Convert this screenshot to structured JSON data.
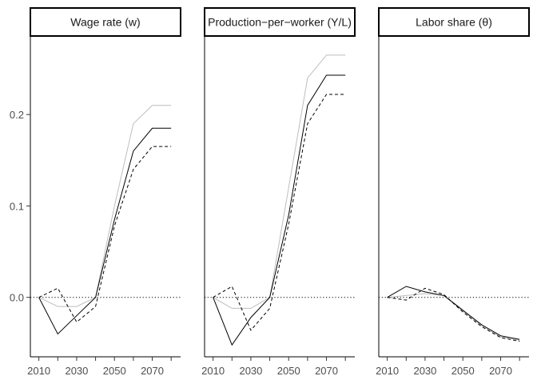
{
  "chart_data": [
    {
      "type": "line",
      "title": "Wage rate (w)",
      "x": [
        2010,
        2020,
        2030,
        2040,
        2050,
        2060,
        2070,
        2080
      ],
      "ylim": [
        -0.065,
        0.285
      ],
      "xlim": [
        2005.5,
        2085
      ],
      "yticks": [
        "0.0",
        "0.1",
        "0.2"
      ],
      "ytick_values": [
        0,
        0.1,
        0.2
      ],
      "xticks": [
        "2010",
        "2030",
        "2050",
        "2070"
      ],
      "xtick_values": [
        2010,
        2030,
        2050,
        2070
      ],
      "reference_line": 0,
      "series": [
        {
          "style": "solid",
          "color": "#000000",
          "values": [
            0,
            -0.04,
            -0.02,
            0,
            0.085,
            0.16,
            0.185,
            0.185
          ]
        },
        {
          "style": "dashed",
          "color": "#000000",
          "values": [
            0,
            0.01,
            -0.027,
            -0.01,
            0.078,
            0.14,
            0.165,
            0.165
          ]
        },
        {
          "style": "solid",
          "color": "#bdbdbd",
          "values": [
            0,
            -0.01,
            -0.01,
            0,
            0.1,
            0.19,
            0.21,
            0.21
          ]
        }
      ]
    },
    {
      "type": "line",
      "title": "Production−per−worker (Y/L)",
      "x": [
        2010,
        2020,
        2030,
        2040,
        2050,
        2060,
        2070,
        2080
      ],
      "ylim": [
        -0.065,
        0.285
      ],
      "xlim": [
        2005.5,
        2085
      ],
      "xticks": [
        "2010",
        "2030",
        "2050",
        "2070"
      ],
      "xtick_values": [
        2010,
        2030,
        2050,
        2070
      ],
      "reference_line": 0,
      "series": [
        {
          "style": "solid",
          "color": "#000000",
          "values": [
            0,
            -0.052,
            -0.022,
            0,
            0.09,
            0.21,
            0.243,
            0.243
          ]
        },
        {
          "style": "dashed",
          "color": "#000000",
          "values": [
            0,
            0.012,
            -0.036,
            -0.012,
            0.08,
            0.19,
            0.222,
            0.222
          ]
        },
        {
          "style": "solid",
          "color": "#bdbdbd",
          "values": [
            0,
            -0.012,
            -0.012,
            0,
            0.12,
            0.24,
            0.265,
            0.265
          ]
        }
      ]
    },
    {
      "type": "line",
      "title": "Labor share (θ)",
      "x": [
        2010,
        2020,
        2030,
        2040,
        2050,
        2060,
        2070,
        2080
      ],
      "ylim": [
        -0.065,
        0.285
      ],
      "xlim": [
        2005.5,
        2085
      ],
      "xticks": [
        "2010",
        "2030",
        "2050",
        "2070"
      ],
      "xtick_values": [
        2010,
        2030,
        2050,
        2070
      ],
      "reference_line": 0,
      "series": [
        {
          "style": "solid",
          "color": "#000000",
          "values": [
            0,
            0.012,
            0.006,
            0.002,
            -0.014,
            -0.03,
            -0.042,
            -0.046
          ]
        },
        {
          "style": "dashed",
          "color": "#000000",
          "values": [
            0,
            -0.003,
            0.01,
            0.003,
            -0.016,
            -0.032,
            -0.044,
            -0.048
          ]
        },
        {
          "style": "solid",
          "color": "#bdbdbd",
          "values": [
            0,
            0.002,
            0.004,
            0.002,
            -0.015,
            -0.031,
            -0.043,
            -0.047
          ]
        }
      ]
    }
  ]
}
